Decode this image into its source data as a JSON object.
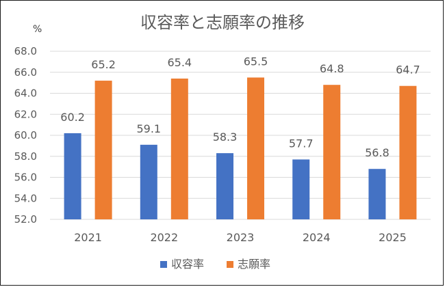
{
  "chart_data": {
    "type": "bar",
    "title": "収容率と志願率の推移",
    "unit_label": "%",
    "categories": [
      "2021",
      "2022",
      "2023",
      "2024",
      "2025"
    ],
    "series": [
      {
        "name": "収容率",
        "values": [
          60.2,
          59.1,
          58.3,
          57.7,
          56.8
        ],
        "color": "#4472c4"
      },
      {
        "name": "志願率",
        "values": [
          65.2,
          65.4,
          65.5,
          64.8,
          64.7
        ],
        "color": "#ed7d31"
      }
    ],
    "ylim": [
      52.0,
      68.0
    ],
    "yticks": [
      "52.0",
      "54.0",
      "56.0",
      "58.0",
      "60.0",
      "62.0",
      "64.0",
      "66.0",
      "68.0"
    ],
    "grid": true,
    "data_labels": true,
    "legend_position": "bottom"
  }
}
